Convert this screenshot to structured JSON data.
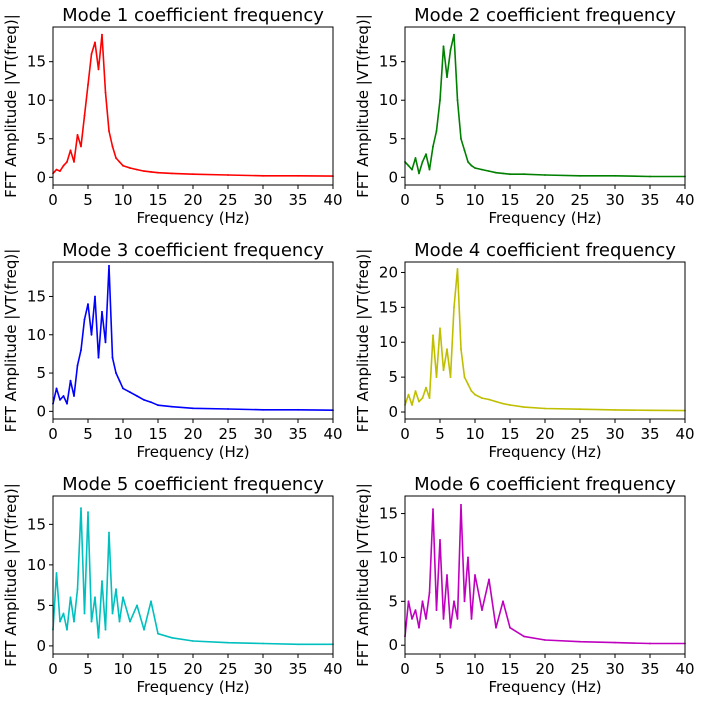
{
  "chart_data": [
    {
      "type": "line",
      "title": "Mode 1 coefficient frequency",
      "xlabel": "Frequency (Hz)",
      "ylabel": "FFT Amplitude |VT(freq)|",
      "color": "#ff0000",
      "xlim": [
        0,
        40
      ],
      "ylim": [
        -1,
        19.5
      ],
      "xticks": [
        0,
        5,
        10,
        15,
        20,
        25,
        30,
        35,
        40
      ],
      "yticks": [
        0,
        5,
        10,
        15
      ],
      "series": [
        {
          "name": "",
          "x": [
            0,
            0.5,
            1,
            1.5,
            2,
            2.5,
            3,
            3.5,
            4,
            4.5,
            5,
            5.5,
            6,
            6.5,
            7,
            7.5,
            8,
            8.5,
            9,
            9.5,
            10,
            11,
            12,
            13,
            14,
            15,
            17,
            20,
            25,
            30,
            35,
            40
          ],
          "y": [
            0.5,
            1,
            0.8,
            1.5,
            2,
            3.5,
            2,
            5.5,
            4,
            8,
            12,
            16,
            17.5,
            14,
            18.5,
            11,
            6,
            4,
            2.5,
            2,
            1.5,
            1.2,
            1,
            0.8,
            0.7,
            0.6,
            0.5,
            0.4,
            0.3,
            0.2,
            0.2,
            0.15
          ]
        }
      ]
    },
    {
      "type": "line",
      "title": "Mode 2 coefficient frequency",
      "xlabel": "Frequency (Hz)",
      "ylabel": "FFT Amplitude |VT(freq)|",
      "color": "#008000",
      "xlim": [
        0,
        40
      ],
      "ylim": [
        -1,
        19.5
      ],
      "xticks": [
        0,
        5,
        10,
        15,
        20,
        25,
        30,
        35,
        40
      ],
      "yticks": [
        0,
        5,
        10,
        15
      ],
      "series": [
        {
          "name": "",
          "x": [
            0,
            0.5,
            1,
            1.5,
            2,
            2.5,
            3,
            3.5,
            4,
            4.5,
            5,
            5.5,
            6,
            6.5,
            7,
            7.5,
            8,
            8.5,
            9,
            9.5,
            10,
            11,
            12,
            13,
            14,
            15,
            17,
            20,
            25,
            30,
            35,
            40
          ],
          "y": [
            2,
            1.5,
            1,
            2.5,
            0.5,
            2,
            3,
            1,
            4,
            6,
            10,
            17,
            13,
            16.5,
            18.5,
            10,
            5,
            3.5,
            2,
            1.5,
            1.2,
            1,
            0.8,
            0.6,
            0.5,
            0.4,
            0.4,
            0.3,
            0.2,
            0.2,
            0.1,
            0.1
          ]
        }
      ]
    },
    {
      "type": "line",
      "title": "Mode 3 coefficient frequency",
      "xlabel": "Frequency (Hz)",
      "ylabel": "FFT Amplitude |VT(freq)|",
      "color": "#0000ff",
      "xlim": [
        0,
        40
      ],
      "ylim": [
        -1,
        19.5
      ],
      "xticks": [
        0,
        5,
        10,
        15,
        20,
        25,
        30,
        35,
        40
      ],
      "yticks": [
        0,
        5,
        10,
        15
      ],
      "series": [
        {
          "name": "",
          "x": [
            0,
            0.5,
            1,
            1.5,
            2,
            2.5,
            3,
            3.5,
            4,
            4.5,
            5,
            5.5,
            6,
            6.5,
            7,
            7.5,
            8,
            8.5,
            9,
            9.5,
            10,
            11,
            12,
            13,
            14,
            15,
            17,
            20,
            25,
            30,
            35,
            40
          ],
          "y": [
            1,
            3,
            1.5,
            2,
            1,
            4,
            2,
            6,
            8,
            12,
            14,
            10,
            15,
            7,
            13,
            9,
            19,
            7,
            5,
            4,
            3,
            2.5,
            2,
            1.5,
            1.2,
            0.8,
            0.6,
            0.4,
            0.3,
            0.2,
            0.2,
            0.15
          ]
        }
      ]
    },
    {
      "type": "line",
      "title": "Mode 4 coefficient frequency",
      "xlabel": "Frequency (Hz)",
      "ylabel": "FFT Amplitude |VT(freq)|",
      "color": "#bfbf00",
      "xlim": [
        0,
        40
      ],
      "ylim": [
        -1,
        21.5
      ],
      "xticks": [
        0,
        5,
        10,
        15,
        20,
        25,
        30,
        35,
        40
      ],
      "yticks": [
        0,
        5,
        10,
        15,
        20
      ],
      "series": [
        {
          "name": "",
          "x": [
            0,
            0.5,
            1,
            1.5,
            2,
            2.5,
            3,
            3.5,
            4,
            4.5,
            5,
            5.5,
            6,
            6.5,
            7,
            7.5,
            8,
            8.5,
            9,
            9.5,
            10,
            11,
            12,
            13,
            14,
            15,
            17,
            20,
            25,
            30,
            35,
            40
          ],
          "y": [
            1,
            2.5,
            1,
            3,
            1.5,
            2,
            3.5,
            2,
            11,
            5,
            12,
            6,
            9,
            5,
            15,
            20.5,
            9,
            5,
            4,
            3,
            2.5,
            2,
            1.8,
            1.5,
            1.2,
            1,
            0.7,
            0.5,
            0.4,
            0.3,
            0.25,
            0.2
          ]
        }
      ]
    },
    {
      "type": "line",
      "title": "Mode 5 coefficient frequency",
      "xlabel": "Frequency (Hz)",
      "ylabel": "FFT Amplitude |VT(freq)|",
      "color": "#00bfbf",
      "xlim": [
        0,
        40
      ],
      "ylim": [
        -1,
        18.5
      ],
      "xticks": [
        0,
        5,
        10,
        15,
        20,
        25,
        30,
        35,
        40
      ],
      "yticks": [
        0,
        5,
        10,
        15
      ],
      "series": [
        {
          "name": "",
          "x": [
            0,
            0.5,
            1,
            1.5,
            2,
            2.5,
            3,
            3.5,
            4,
            4.5,
            5,
            5.5,
            6,
            6.5,
            7,
            7.5,
            8,
            8.5,
            9,
            9.5,
            10,
            11,
            12,
            13,
            14,
            15,
            17,
            20,
            25,
            30,
            35,
            40
          ],
          "y": [
            2,
            9,
            3,
            4,
            2,
            6,
            3,
            7,
            17,
            4,
            16.5,
            3,
            6,
            1,
            8,
            2,
            14,
            4,
            7,
            3,
            6,
            3,
            5,
            2,
            5.5,
            1.5,
            1,
            0.6,
            0.4,
            0.3,
            0.2,
            0.2
          ]
        }
      ]
    },
    {
      "type": "line",
      "title": "Mode 6 coefficient frequency",
      "xlabel": "Frequency (Hz)",
      "ylabel": "FFT Amplitude |VT(freq)|",
      "color": "#bf00bf",
      "xlim": [
        0,
        40
      ],
      "ylim": [
        -1,
        17
      ],
      "xticks": [
        0,
        5,
        10,
        15,
        20,
        25,
        30,
        35,
        40
      ],
      "yticks": [
        0,
        5,
        10,
        15
      ],
      "series": [
        {
          "name": "",
          "x": [
            0,
            0.5,
            1,
            1.5,
            2,
            2.5,
            3,
            3.5,
            4,
            4.5,
            5,
            5.5,
            6,
            6.5,
            7,
            7.5,
            8,
            8.5,
            9,
            9.5,
            10,
            11,
            12,
            13,
            14,
            15,
            17,
            20,
            25,
            30,
            35,
            40
          ],
          "y": [
            1,
            5,
            3,
            4,
            2,
            5,
            3,
            6,
            15.5,
            4,
            12,
            3,
            8,
            2,
            5,
            3,
            16,
            5,
            10,
            3,
            8,
            4,
            7.5,
            2,
            5,
            2,
            1,
            0.6,
            0.4,
            0.3,
            0.2,
            0.2
          ]
        }
      ]
    }
  ]
}
